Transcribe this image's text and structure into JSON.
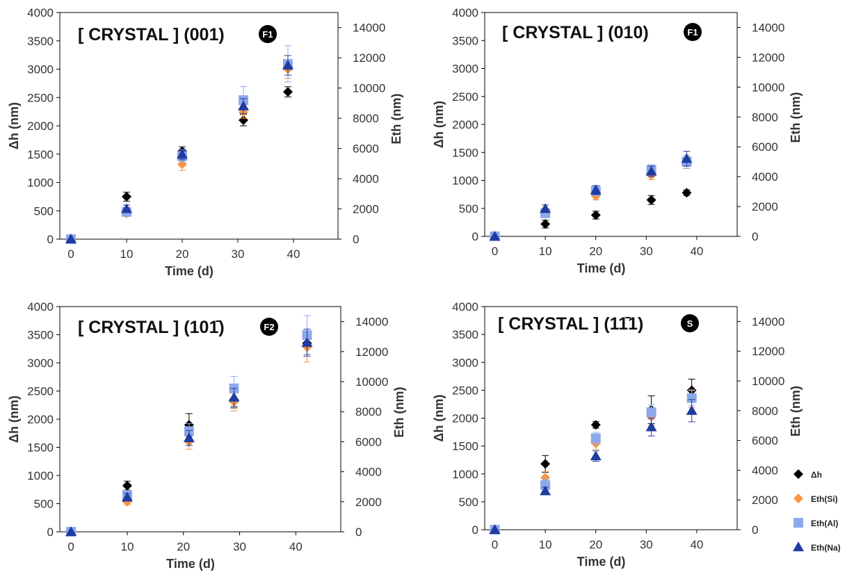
{
  "chart_data": [
    {
      "type": "scatter",
      "title": "[ CRYSTAL ] (001)",
      "badge": "F1",
      "xlabel": "Time (d)",
      "ylabel": "Δh (nm)",
      "y2label": "Eth (nm)",
      "xlim": [
        -2,
        48
      ],
      "xticks": [
        0,
        10,
        20,
        30,
        40
      ],
      "ylim": [
        0,
        4000
      ],
      "yticks": [
        0,
        500,
        1000,
        1500,
        2000,
        2500,
        3000,
        3500,
        4000
      ],
      "y2lim": [
        0,
        15000
      ],
      "y2ticks": [
        0,
        2000,
        4000,
        6000,
        8000,
        10000,
        12000,
        14000
      ],
      "series": [
        {
          "name": "Δh",
          "axis": "left",
          "marker": "diamond",
          "color": "#000000",
          "x": [
            0,
            10,
            20,
            31,
            39
          ],
          "y": [
            0,
            750,
            1550,
            2100,
            2600
          ],
          "err": [
            0,
            80,
            80,
            100,
            90
          ]
        },
        {
          "name": "Eth(Si)",
          "axis": "right",
          "marker": "diamond",
          "color": "#F79646",
          "x": [
            0,
            10,
            20,
            31,
            39
          ],
          "y": [
            0,
            1700,
            4950,
            8400,
            11250
          ],
          "err": [
            0,
            150,
            400,
            400,
            600
          ]
        },
        {
          "name": "Eth(Al)",
          "axis": "right",
          "marker": "square",
          "color": "#8EA9EB",
          "x": [
            0,
            10,
            20,
            31,
            39
          ],
          "y": [
            0,
            1800,
            5500,
            9200,
            11600
          ],
          "err": [
            0,
            150,
            400,
            900,
            1200
          ]
        },
        {
          "name": "Eth(Na)",
          "axis": "right",
          "marker": "triangle",
          "color": "#1F3CA0",
          "x": [
            0,
            10,
            20,
            31,
            39
          ],
          "y": [
            0,
            2000,
            5600,
            8800,
            11500
          ],
          "err": [
            0,
            250,
            350,
            500,
            650
          ]
        }
      ]
    },
    {
      "type": "scatter",
      "title": "[ CRYSTAL ] (010)",
      "badge": "F1",
      "xlabel": "Time (d)",
      "ylabel": "Δh (nm)",
      "y2label": "Eth (nm)",
      "xlim": [
        -2,
        48
      ],
      "xticks": [
        0,
        10,
        20,
        30,
        40
      ],
      "ylim": [
        0,
        4000
      ],
      "yticks": [
        0,
        500,
        1000,
        1500,
        2000,
        2500,
        3000,
        3500,
        4000
      ],
      "y2lim": [
        0,
        15000
      ],
      "y2ticks": [
        0,
        2000,
        4000,
        6000,
        8000,
        10000,
        12000,
        14000
      ],
      "series": [
        {
          "name": "Δh",
          "axis": "left",
          "marker": "diamond",
          "color": "#000000",
          "x": [
            0,
            10,
            20,
            31,
            38
          ],
          "y": [
            0,
            220,
            380,
            650,
            780
          ],
          "err": [
            0,
            70,
            70,
            80,
            50
          ]
        },
        {
          "name": "Eth(Si)",
          "axis": "right",
          "marker": "diamond",
          "color": "#F79646",
          "x": [
            0,
            10,
            20,
            31,
            38
          ],
          "y": [
            0,
            1500,
            2700,
            4100,
            4950
          ],
          "err": [
            0,
            200,
            250,
            300,
            400
          ]
        },
        {
          "name": "Eth(Al)",
          "axis": "right",
          "marker": "square",
          "color": "#8EA9EB",
          "x": [
            0,
            10,
            20,
            31,
            38
          ],
          "y": [
            0,
            1550,
            3050,
            4450,
            5000
          ],
          "err": [
            0,
            200,
            300,
            350,
            450
          ]
        },
        {
          "name": "Eth(Na)",
          "axis": "right",
          "marker": "triangle",
          "color": "#1F3CA0",
          "x": [
            0,
            10,
            20,
            31,
            38
          ],
          "y": [
            0,
            1850,
            3100,
            4350,
            5200
          ],
          "err": [
            0,
            250,
            300,
            350,
            500
          ]
        }
      ]
    },
    {
      "type": "scatter",
      "title": "[ CRYSTAL ] (101̄)",
      "badge": "F2",
      "xlabel": "Time (d)",
      "ylabel": "Δh (nm)",
      "y2label": "Eth (nm)",
      "xlim": [
        -2,
        48
      ],
      "xticks": [
        0,
        10,
        20,
        30,
        40
      ],
      "ylim": [
        0,
        4000
      ],
      "yticks": [
        0,
        500,
        1000,
        1500,
        2000,
        2500,
        3000,
        3500,
        4000
      ],
      "y2lim": [
        0,
        15000
      ],
      "y2ticks": [
        0,
        2000,
        4000,
        6000,
        8000,
        10000,
        12000,
        14000
      ],
      "series": [
        {
          "name": "Δh",
          "axis": "left",
          "marker": "diamond",
          "color": "#000000",
          "x": [
            0,
            10,
            21,
            29,
            42
          ],
          "y": [
            0,
            820,
            1900,
            2350,
            3350
          ],
          "err": [
            0,
            80,
            200,
            150,
            200
          ]
        },
        {
          "name": "Eth(Si)",
          "axis": "right",
          "marker": "diamond",
          "color": "#F79646",
          "x": [
            0,
            10,
            21,
            29,
            42
          ],
          "y": [
            0,
            2000,
            6000,
            8650,
            12300
          ],
          "err": [
            0,
            200,
            500,
            600,
            1000
          ]
        },
        {
          "name": "Eth(Al)",
          "axis": "right",
          "marker": "square",
          "color": "#8EA9EB",
          "x": [
            0,
            10,
            21,
            29,
            42
          ],
          "y": [
            0,
            2450,
            6700,
            9550,
            13100
          ],
          "err": [
            0,
            250,
            500,
            800,
            1300
          ]
        },
        {
          "name": "Eth(Na)",
          "axis": "right",
          "marker": "triangle",
          "color": "#1F3CA0",
          "x": [
            0,
            10,
            21,
            29,
            42
          ],
          "y": [
            0,
            2300,
            6250,
            8950,
            12600
          ],
          "err": [
            0,
            250,
            500,
            600,
            900
          ]
        }
      ]
    },
    {
      "type": "scatter",
      "title": "[ CRYSTAL ] (11̄1)",
      "badge": "S",
      "xlabel": "Time (d)",
      "ylabel": "Δh (nm)",
      "y2label": "Eth (nm)",
      "xlim": [
        -2,
        48
      ],
      "xticks": [
        0,
        10,
        20,
        30,
        40
      ],
      "ylim": [
        0,
        4000
      ],
      "yticks": [
        0,
        500,
        1000,
        1500,
        2000,
        2500,
        3000,
        3500,
        4000
      ],
      "y2lim": [
        0,
        15000
      ],
      "y2ticks": [
        0,
        2000,
        4000,
        6000,
        8000,
        10000,
        12000,
        14000
      ],
      "series": [
        {
          "name": "Δh",
          "axis": "left",
          "marker": "diamond",
          "color": "#000000",
          "x": [
            0,
            10,
            20,
            31,
            39
          ],
          "y": [
            0,
            1180,
            1880,
            2150,
            2500
          ],
          "err": [
            0,
            150,
            60,
            250,
            200
          ]
        },
        {
          "name": "Eth(Si)",
          "axis": "right",
          "marker": "diamond",
          "color": "#F79646",
          "x": [
            0,
            10,
            20,
            31,
            39
          ],
          "y": [
            0,
            3500,
            5800,
            7600,
            8800
          ],
          "err": [
            0,
            400,
            400,
            600,
            600
          ]
        },
        {
          "name": "Eth(Al)",
          "axis": "right",
          "marker": "square",
          "color": "#8EA9EB",
          "x": [
            0,
            10,
            20,
            31,
            39
          ],
          "y": [
            0,
            3000,
            6150,
            7900,
            8850
          ],
          "err": [
            0,
            400,
            400,
            500,
            500
          ]
        },
        {
          "name": "Eth(Na)",
          "axis": "right",
          "marker": "triangle",
          "color": "#1F3CA0",
          "x": [
            0,
            10,
            20,
            31,
            39
          ],
          "y": [
            0,
            2600,
            4950,
            6900,
            8000
          ],
          "err": [
            0,
            250,
            350,
            600,
            750
          ]
        }
      ]
    }
  ],
  "legend": {
    "placement": "right of bottom-right chart",
    "entries": [
      {
        "label": "Δh",
        "marker": "diamond",
        "color": "#000000"
      },
      {
        "label": "Eth(Si)",
        "marker": "diamond",
        "color": "#F79646"
      },
      {
        "label": "Eth(Al)",
        "marker": "square",
        "color": "#8EA9EB"
      },
      {
        "label": "Eth(Na)",
        "marker": "triangle",
        "color": "#1F3CA0"
      }
    ]
  }
}
